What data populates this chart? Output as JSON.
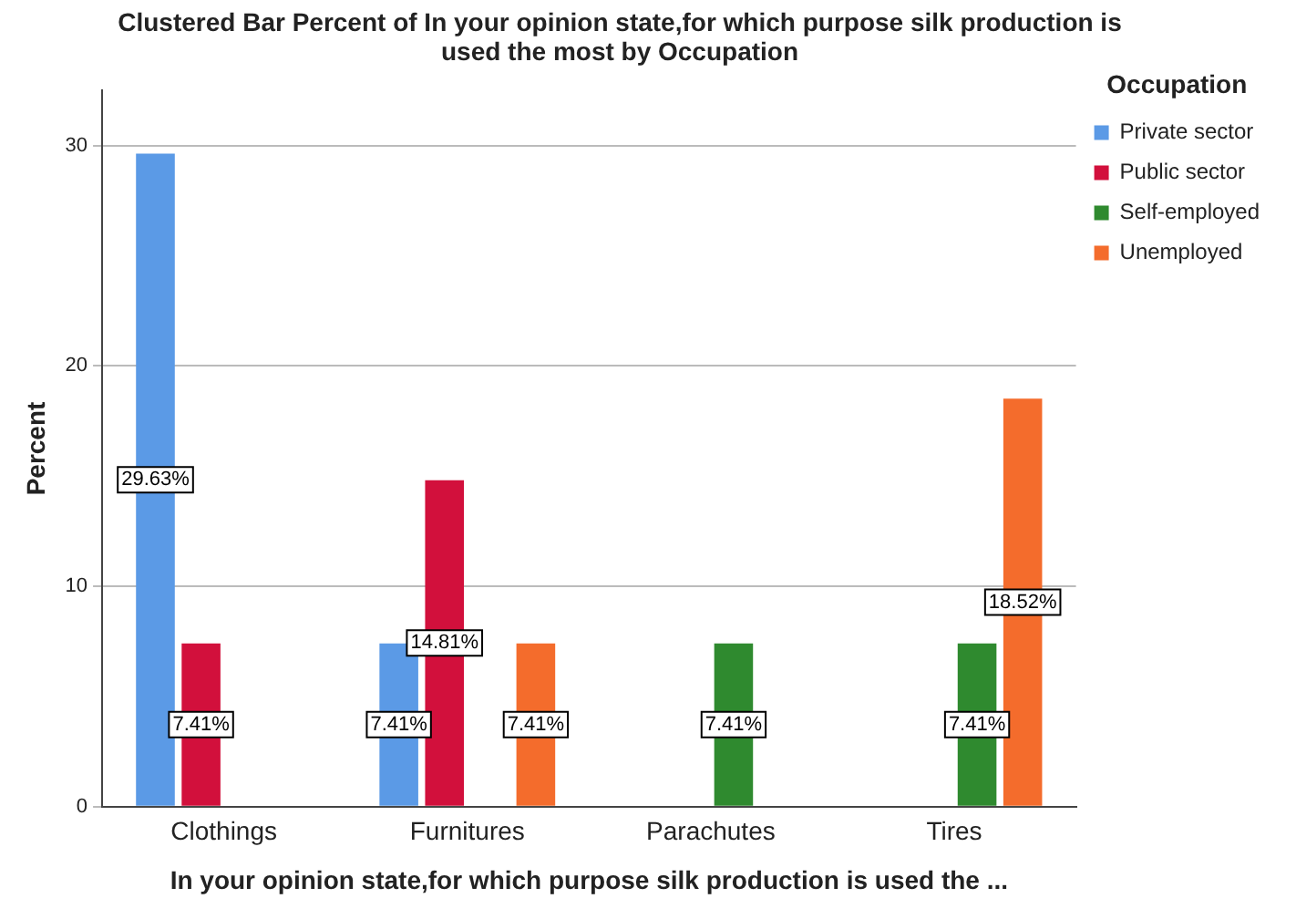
{
  "chart_data": {
    "type": "bar",
    "title": "Clustered Bar Percent of In your opinion state,for which purpose silk production is used the most by Occupation",
    "xlabel": "In your opinion state,for which purpose silk production is used the ...",
    "ylabel": "Percent",
    "legend_title": "Occupation",
    "categories": [
      "Clothings",
      "Furnitures",
      "Parachutes",
      "Tires"
    ],
    "series": [
      {
        "name": "Private sector",
        "color": "#5b9ae6",
        "values": [
          29.63,
          7.41,
          null,
          null
        ],
        "value_labels": [
          "29.63%",
          "7.41%",
          null,
          null
        ]
      },
      {
        "name": "Public sector",
        "color": "#d2103c",
        "values": [
          7.41,
          14.81,
          null,
          null
        ],
        "value_labels": [
          "7.41%",
          "14.81%",
          null,
          null
        ]
      },
      {
        "name": "Self-employed",
        "color": "#2f8a2f",
        "values": [
          null,
          null,
          7.41,
          7.41
        ],
        "value_labels": [
          null,
          null,
          "7.41%",
          "7.41%"
        ]
      },
      {
        "name": "Unemployed",
        "color": "#f46c2c",
        "values": [
          null,
          7.41,
          null,
          18.52
        ],
        "value_labels": [
          null,
          "7.41%",
          null,
          "18.52%"
        ]
      }
    ],
    "ylim": [
      0,
      32.5
    ],
    "yticks": [
      0,
      10,
      20,
      30
    ],
    "grid": "y",
    "legend": "top right"
  }
}
